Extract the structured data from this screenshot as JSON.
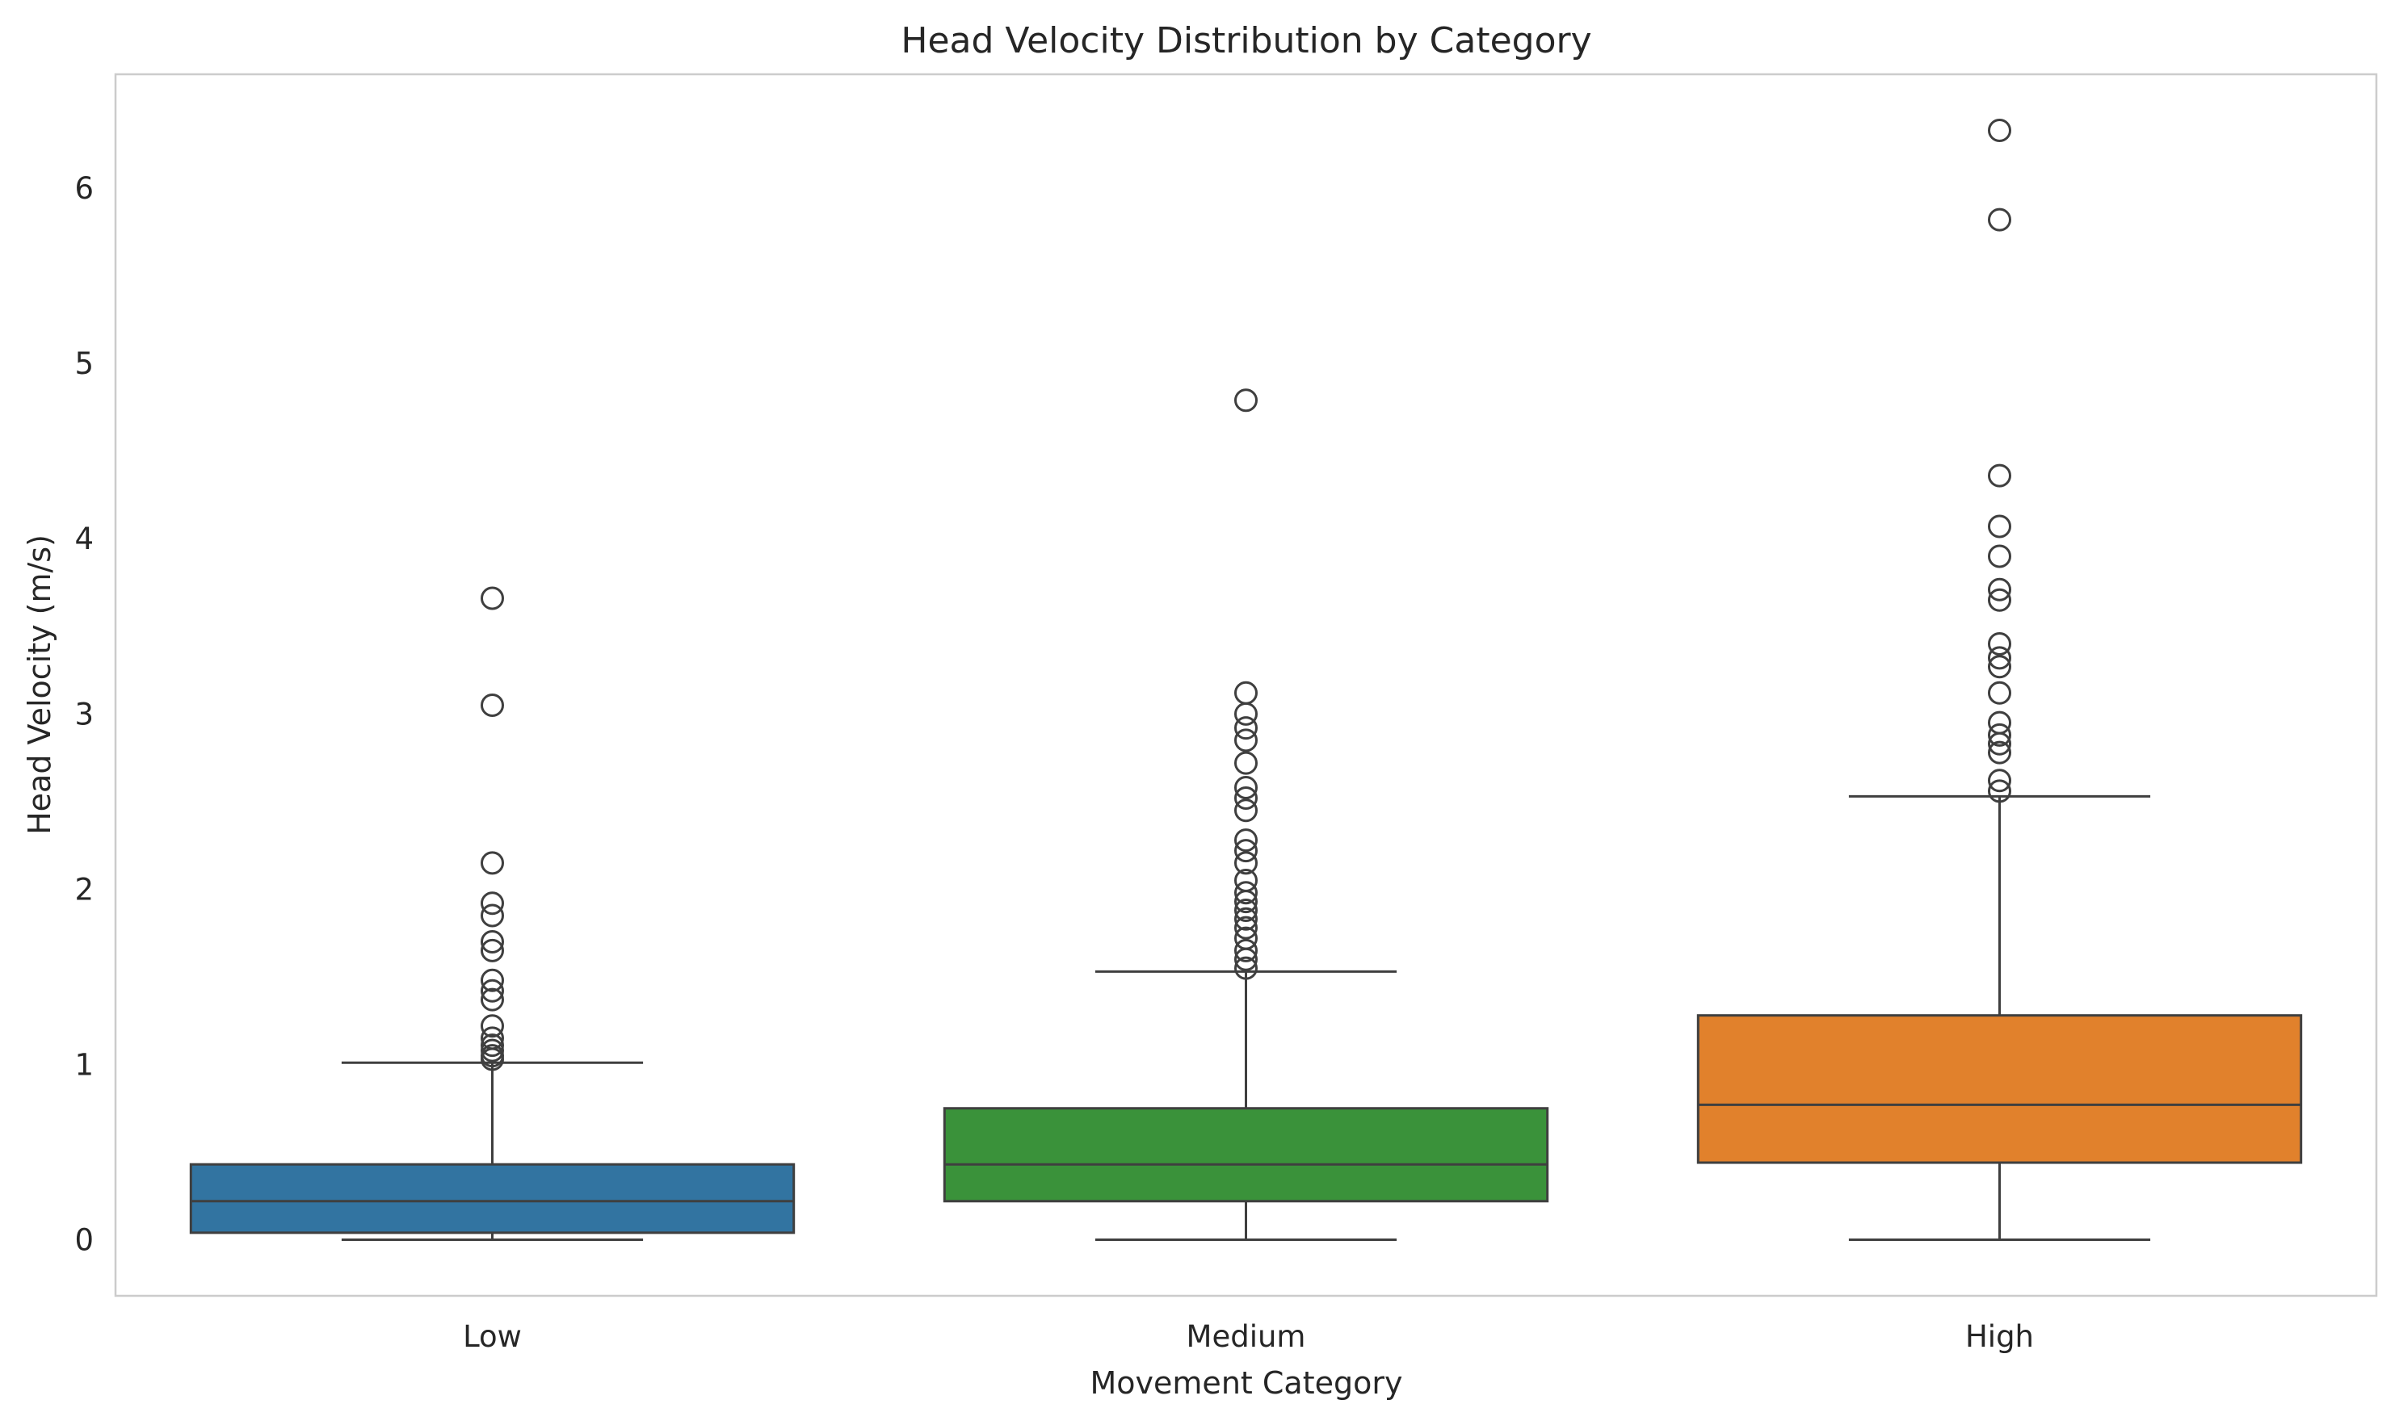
{
  "chart_data": {
    "type": "box",
    "title": "Head Velocity Distribution by Category",
    "xlabel": "Movement Category",
    "ylabel": "Head Velocity (m/s)",
    "categories": [
      "Low",
      "Medium",
      "High"
    ],
    "ylim": [
      -0.32,
      6.65
    ],
    "yticks": [
      0,
      1,
      2,
      3,
      4,
      5,
      6
    ],
    "grid": false,
    "boxes": [
      {
        "category": "Low",
        "color": "#3274a1",
        "whisker_low": 0.0,
        "q1": 0.04,
        "median": 0.22,
        "q3": 0.43,
        "whisker_high": 1.01,
        "outliers": [
          1.03,
          1.05,
          1.08,
          1.11,
          1.15,
          1.22,
          1.37,
          1.42,
          1.48,
          1.65,
          1.7,
          1.85,
          1.92,
          2.15,
          3.05,
          3.66
        ]
      },
      {
        "category": "Medium",
        "color": "#3a923a",
        "whisker_low": 0.0,
        "q1": 0.22,
        "median": 0.43,
        "q3": 0.75,
        "whisker_high": 1.53,
        "outliers": [
          1.55,
          1.6,
          1.65,
          1.72,
          1.78,
          1.83,
          1.88,
          1.93,
          1.98,
          2.05,
          2.15,
          2.22,
          2.28,
          2.45,
          2.52,
          2.58,
          2.72,
          2.85,
          2.92,
          3.0,
          3.12,
          4.79
        ]
      },
      {
        "category": "High",
        "color": "#e1812c",
        "whisker_low": 0.0,
        "q1": 0.44,
        "median": 0.77,
        "q3": 1.28,
        "whisker_high": 2.53,
        "outliers": [
          2.56,
          2.62,
          2.78,
          2.83,
          2.88,
          2.95,
          3.12,
          3.27,
          3.32,
          3.4,
          3.65,
          3.71,
          3.9,
          4.07,
          4.36,
          5.82,
          6.33
        ]
      }
    ]
  }
}
